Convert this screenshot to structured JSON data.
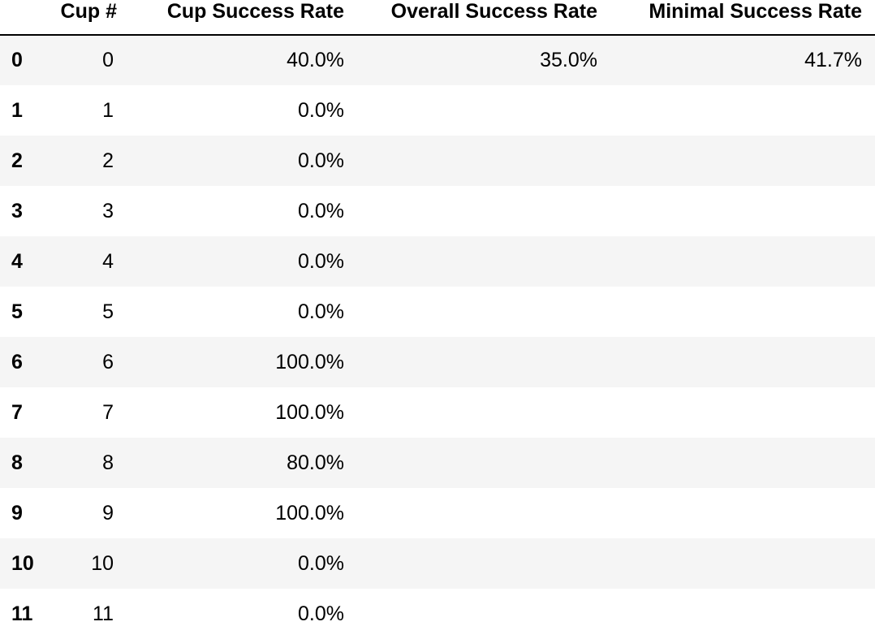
{
  "table": {
    "index_header": "",
    "columns": [
      "Cup #",
      "Cup Success Rate",
      "Overall Success Rate",
      "Minimal Success Rate"
    ],
    "rows": [
      {
        "index": "0",
        "cup": "0",
        "cup_success_rate": "40.0%",
        "overall_success_rate": "35.0%",
        "minimal_success_rate": "41.7%"
      },
      {
        "index": "1",
        "cup": "1",
        "cup_success_rate": "0.0%",
        "overall_success_rate": "",
        "minimal_success_rate": ""
      },
      {
        "index": "2",
        "cup": "2",
        "cup_success_rate": "0.0%",
        "overall_success_rate": "",
        "minimal_success_rate": ""
      },
      {
        "index": "3",
        "cup": "3",
        "cup_success_rate": "0.0%",
        "overall_success_rate": "",
        "minimal_success_rate": ""
      },
      {
        "index": "4",
        "cup": "4",
        "cup_success_rate": "0.0%",
        "overall_success_rate": "",
        "minimal_success_rate": ""
      },
      {
        "index": "5",
        "cup": "5",
        "cup_success_rate": "0.0%",
        "overall_success_rate": "",
        "minimal_success_rate": ""
      },
      {
        "index": "6",
        "cup": "6",
        "cup_success_rate": "100.0%",
        "overall_success_rate": "",
        "minimal_success_rate": ""
      },
      {
        "index": "7",
        "cup": "7",
        "cup_success_rate": "100.0%",
        "overall_success_rate": "",
        "minimal_success_rate": ""
      },
      {
        "index": "8",
        "cup": "8",
        "cup_success_rate": "80.0%",
        "overall_success_rate": "",
        "minimal_success_rate": ""
      },
      {
        "index": "9",
        "cup": "9",
        "cup_success_rate": "100.0%",
        "overall_success_rate": "",
        "minimal_success_rate": ""
      },
      {
        "index": "10",
        "cup": "10",
        "cup_success_rate": "0.0%",
        "overall_success_rate": "",
        "minimal_success_rate": ""
      },
      {
        "index": "11",
        "cup": "11",
        "cup_success_rate": "0.0%",
        "overall_success_rate": "",
        "minimal_success_rate": ""
      }
    ]
  },
  "colors": {
    "row_stripe": "#f5f5f5",
    "row_plain": "#ffffff",
    "header_rule": "#000000",
    "text": "#000000"
  }
}
